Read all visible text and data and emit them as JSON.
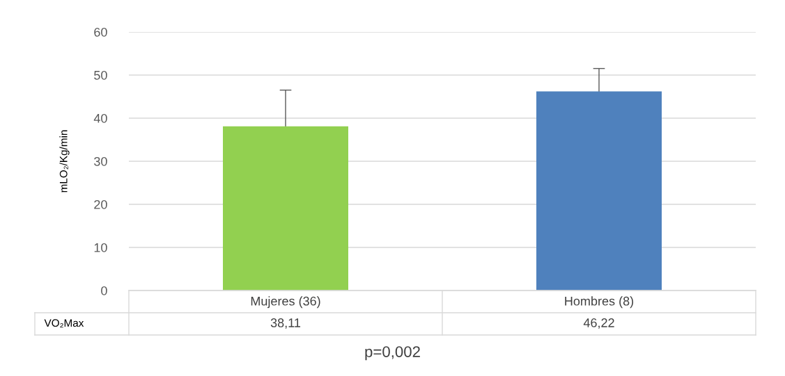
{
  "chart_data": {
    "type": "bar",
    "ylabel": "mLO₂/Kg/min",
    "categories": [
      "Mujeres (36)",
      "Hombres (8)"
    ],
    "series": [
      {
        "name": "VO₂Max",
        "colors": [
          "#92d050",
          "#4f81bd"
        ],
        "values": [
          38.11,
          46.22
        ],
        "errors": [
          8.4,
          5.3
        ],
        "value_labels": [
          "38,11",
          "46,22"
        ]
      }
    ],
    "ylim": [
      0,
      60
    ],
    "yticks": [
      0,
      10,
      20,
      30,
      40,
      50,
      60
    ],
    "grid": "y",
    "annotations": [
      "p=0,002"
    ]
  }
}
